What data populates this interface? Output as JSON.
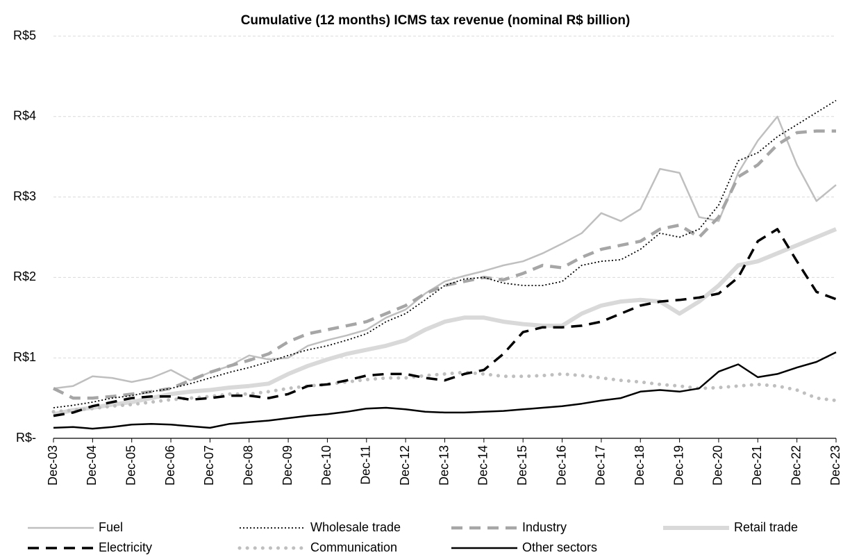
{
  "chart_data": {
    "type": "line",
    "title": "Cumulative (12 months) ICMS tax revenue (nominal R$ billion)",
    "categories": [
      "Dec-03",
      null,
      "Dec-04",
      null,
      "Dec-05",
      null,
      "Dec-06",
      null,
      "Dec-07",
      null,
      "Dec-08",
      null,
      "Dec-09",
      null,
      "Dec-10",
      null,
      "Dec-11",
      null,
      "Dec-12",
      null,
      "Dec-13",
      null,
      "Dec-14",
      null,
      "Dec-15",
      null,
      "Dec-16",
      null,
      "Dec-17",
      null,
      "Dec-18",
      null,
      "Dec-19",
      null,
      "Dec-20",
      null,
      "Dec-21",
      null,
      "Dec-22",
      null,
      "Dec-23"
    ],
    "ylim": [
      0,
      5
    ],
    "yticks": [
      {
        "value": 0,
        "label": "R$-"
      },
      {
        "value": 1,
        "label": "R$1"
      },
      {
        "value": 2,
        "label": "R$2"
      },
      {
        "value": 3,
        "label": "R$3"
      },
      {
        "value": 4,
        "label": "R$4"
      },
      {
        "value": 5,
        "label": "R$5"
      }
    ],
    "grid": true,
    "legend": "bottom",
    "series": [
      {
        "name": "Fuel",
        "color": "#bfbfbf",
        "line_style": "solid",
        "line_width": 2.5,
        "values": [
          0.62,
          0.65,
          0.77,
          0.75,
          0.7,
          0.75,
          0.85,
          0.72,
          0.82,
          0.9,
          1.03,
          0.98,
          1.0,
          1.15,
          1.22,
          1.28,
          1.35,
          1.5,
          1.6,
          1.8,
          1.95,
          2.02,
          2.08,
          2.15,
          2.2,
          2.3,
          2.42,
          2.55,
          2.8,
          2.7,
          2.85,
          3.35,
          3.3,
          2.75,
          2.7,
          3.3,
          3.7,
          4.0,
          3.4,
          2.95,
          3.15
        ]
      },
      {
        "name": "Wholesale trade",
        "color": "#000000",
        "line_style": "dotted",
        "line_width": 1.8,
        "values": [
          0.38,
          0.41,
          0.45,
          0.5,
          0.53,
          0.58,
          0.62,
          0.68,
          0.75,
          0.82,
          0.88,
          0.95,
          1.03,
          1.1,
          1.15,
          1.22,
          1.3,
          1.45,
          1.55,
          1.72,
          1.9,
          1.98,
          2.0,
          1.93,
          1.9,
          1.9,
          1.95,
          2.15,
          2.2,
          2.22,
          2.35,
          2.55,
          2.5,
          2.6,
          2.9,
          3.45,
          3.55,
          3.75,
          3.9,
          4.05,
          4.2
        ]
      },
      {
        "name": "Industry",
        "color": "#a6a6a6",
        "line_style": "dashed",
        "line_width": 4.5,
        "values": [
          0.62,
          0.5,
          0.5,
          0.52,
          0.55,
          0.58,
          0.62,
          0.72,
          0.82,
          0.9,
          0.97,
          1.05,
          1.2,
          1.3,
          1.35,
          1.4,
          1.45,
          1.55,
          1.65,
          1.8,
          1.9,
          1.95,
          2.0,
          1.97,
          2.05,
          2.15,
          2.12,
          2.25,
          2.35,
          2.4,
          2.45,
          2.6,
          2.65,
          2.5,
          2.75,
          3.25,
          3.4,
          3.65,
          3.8,
          3.82,
          3.82
        ]
      },
      {
        "name": "Retail trade",
        "color": "#d9d9d9",
        "line_style": "solid",
        "line_width": 6,
        "values": [
          0.3,
          0.35,
          0.38,
          0.42,
          0.45,
          0.5,
          0.55,
          0.58,
          0.6,
          0.63,
          0.65,
          0.68,
          0.8,
          0.9,
          0.98,
          1.05,
          1.1,
          1.15,
          1.22,
          1.35,
          1.45,
          1.5,
          1.5,
          1.45,
          1.42,
          1.4,
          1.4,
          1.55,
          1.65,
          1.7,
          1.72,
          1.7,
          1.55,
          1.7,
          1.9,
          2.15,
          2.2,
          2.3,
          2.4,
          2.5,
          2.6
        ]
      },
      {
        "name": "Electricity",
        "color": "#000000",
        "line_style": "dashed",
        "line_width": 3.5,
        "values": [
          0.28,
          0.32,
          0.4,
          0.45,
          0.5,
          0.52,
          0.52,
          0.48,
          0.5,
          0.53,
          0.53,
          0.5,
          0.55,
          0.65,
          0.67,
          0.72,
          0.78,
          0.8,
          0.8,
          0.75,
          0.72,
          0.8,
          0.85,
          1.05,
          1.32,
          1.38,
          1.38,
          1.4,
          1.45,
          1.55,
          1.65,
          1.7,
          1.72,
          1.75,
          1.8,
          2.0,
          2.45,
          2.6,
          2.2,
          1.82,
          1.73
        ]
      },
      {
        "name": "Communication",
        "color": "#bfbfbf",
        "line_style": "round-dotted",
        "line_width": 5,
        "values": [
          0.33,
          0.35,
          0.37,
          0.4,
          0.42,
          0.45,
          0.48,
          0.5,
          0.52,
          0.55,
          0.55,
          0.58,
          0.62,
          0.65,
          0.67,
          0.7,
          0.73,
          0.75,
          0.75,
          0.78,
          0.8,
          0.82,
          0.8,
          0.77,
          0.77,
          0.78,
          0.8,
          0.78,
          0.75,
          0.72,
          0.7,
          0.67,
          0.65,
          0.62,
          0.63,
          0.65,
          0.67,
          0.65,
          0.6,
          0.5,
          0.47
        ]
      },
      {
        "name": "Other sectors",
        "color": "#000000",
        "line_style": "solid",
        "line_width": 2.5,
        "values": [
          0.13,
          0.14,
          0.12,
          0.14,
          0.17,
          0.18,
          0.17,
          0.15,
          0.13,
          0.18,
          0.2,
          0.22,
          0.25,
          0.28,
          0.3,
          0.33,
          0.37,
          0.38,
          0.36,
          0.33,
          0.32,
          0.32,
          0.33,
          0.34,
          0.36,
          0.38,
          0.4,
          0.43,
          0.47,
          0.5,
          0.58,
          0.6,
          0.58,
          0.62,
          0.83,
          0.92,
          0.76,
          0.8,
          0.88,
          0.95,
          1.07
        ]
      }
    ]
  }
}
